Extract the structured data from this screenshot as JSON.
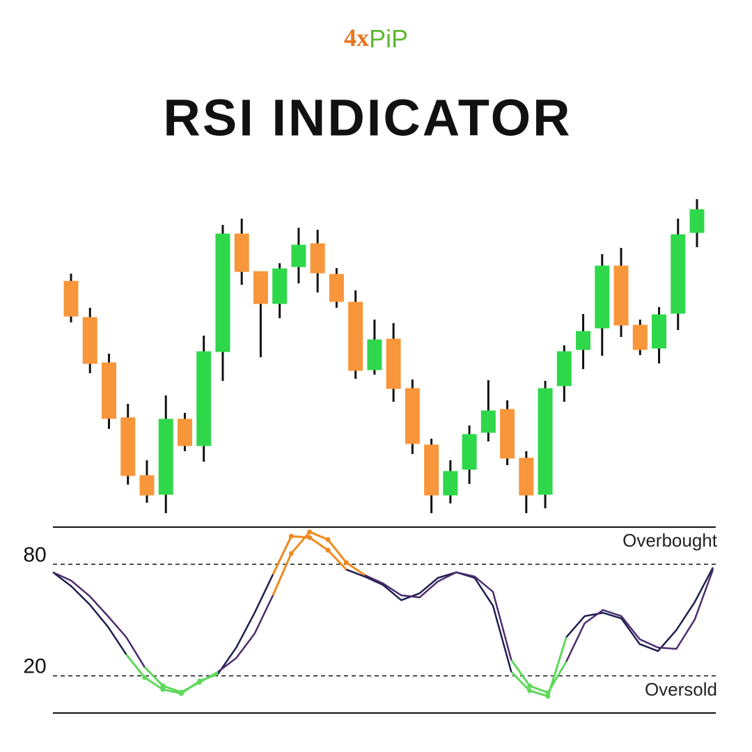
{
  "header": {
    "logo_a": "4x",
    "logo_b": "PiP",
    "title": "RSI INDICATOR"
  },
  "chart_data": [
    {
      "type": "candlestick",
      "up_color": "#2ed84a",
      "down_color": "#f7963a",
      "ylim": [
        0,
        100
      ],
      "open": [
        71.2,
        60.8,
        47.8,
        32,
        15.4,
        10,
        31.6,
        24,
        51,
        84.8,
        74,
        64.8,
        75.4,
        82,
        73.2,
        65.2,
        45.8,
        54.6,
        40.4,
        24.2,
        9.8,
        17.2,
        27.8,
        34.4,
        20.4,
        10,
        41.2,
        51.6,
        57.8,
        75.6,
        58.6,
        52,
        62,
        85.2
      ],
      "high": [
        73.4,
        63.6,
        50.4,
        36,
        19.8,
        38.4,
        33.4,
        55.6,
        87.4,
        89.2,
        74,
        76.4,
        86.6,
        86,
        75,
        68.6,
        60.2,
        59.2,
        43,
        26,
        19.8,
        29.8,
        42.8,
        37,
        22.4,
        42.6,
        52.8,
        61.8,
        79,
        80.8,
        60.2,
        63.8,
        89.2,
        94.8
      ],
      "low": [
        59.4,
        44.8,
        28.8,
        12.8,
        7.6,
        4.6,
        22.4,
        19.4,
        42.6,
        70.2,
        49.4,
        60.6,
        70.6,
        68,
        63.6,
        43.2,
        44.4,
        36.6,
        21.6,
        4.6,
        7.4,
        13,
        25.2,
        18.4,
        4.6,
        6,
        36.6,
        46,
        49.8,
        55.2,
        50,
        47.6,
        57.2,
        81
      ],
      "close": [
        61.2,
        47.6,
        31.8,
        15.4,
        9.8,
        31.6,
        24,
        51,
        84.8,
        74,
        64.8,
        74.8,
        81.6,
        73.6,
        65.4,
        45.6,
        54.4,
        40.4,
        24.6,
        9.8,
        16.6,
        27.2,
        34,
        20.4,
        9.8,
        40.4,
        51,
        56.8,
        75.6,
        58.6,
        51.6,
        61.6,
        84.6,
        91.8
      ]
    },
    {
      "type": "line",
      "ylim": [
        0,
        100
      ],
      "yticks": [
        20,
        80
      ],
      "overbought_color": "#f08a1c",
      "oversold_color": "#5fd95a",
      "annotations": [
        "Overbought",
        "Oversold"
      ],
      "categories": [
        null,
        null,
        null,
        null,
        null,
        null,
        null,
        null,
        null,
        null,
        null,
        null,
        null,
        null,
        null,
        null,
        null,
        null,
        null,
        null,
        null,
        null,
        null,
        null,
        null,
        null,
        null,
        null,
        null,
        null,
        null,
        null,
        null,
        null,
        null,
        null,
        null
      ],
      "series": [
        {
          "color": "#1d1f4f",
          "values": [
            75.7,
            68.2,
            58.4,
            46.4,
            31.5,
            19.1,
            12.7,
            10.5,
            17.2,
            21.0,
            35.2,
            53.9,
            74.5,
            95.1,
            94.4,
            87.6,
            77.2,
            73.4,
            68.9,
            60.7,
            64.4,
            72.7,
            75.7,
            72.7,
            57.7,
            22.1,
            12.0,
            9.0,
            40.8,
            52.1,
            53.9,
            50.9,
            37.1,
            33.3,
            44.6,
            59.6,
            78.3
          ]
        },
        {
          "color": "#4a2c6e",
          "values": [
            75.7,
            71.2,
            62.9,
            52.1,
            40.8,
            24.7,
            14.6,
            11.2,
            16.5,
            22.1,
            29.6,
            42.7,
            63.3,
            85.8,
            97.4,
            93.3,
            80.9,
            74.2,
            69.7,
            63.3,
            62.2,
            70.8,
            75.7,
            73.4,
            65.2,
            28.5,
            14.6,
            10.9,
            27.7,
            48.3,
            55.4,
            52.1,
            39.7,
            35.2,
            34.5,
            50.2,
            77.2
          ]
        }
      ]
    }
  ]
}
